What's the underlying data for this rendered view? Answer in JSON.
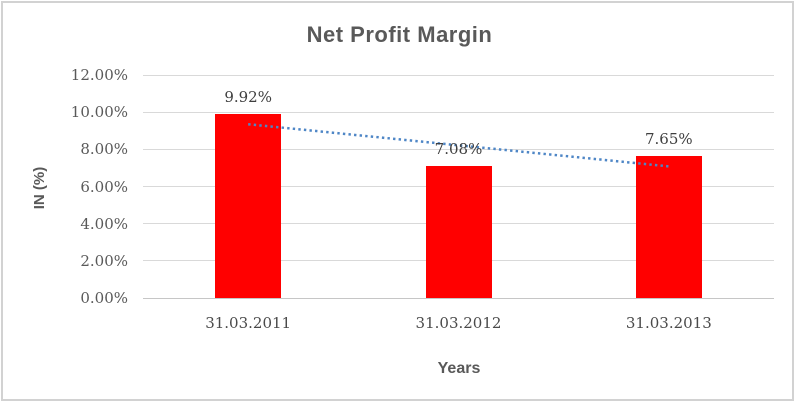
{
  "window": {
    "background": "#ffffff",
    "frame_border_color": "#d2d2d2"
  },
  "chart_data": {
    "type": "bar",
    "title": "Net Profit Margin",
    "xlabel": "Years",
    "ylabel": "IN (%)",
    "categories": [
      "31.03.2011",
      "31.03.2012",
      "31.03.2013"
    ],
    "values": [
      9.92,
      7.08,
      7.65
    ],
    "value_labels": [
      "9.92%",
      "7.08%",
      "7.65%"
    ],
    "ylim": [
      0,
      12
    ],
    "ytick_step": 2,
    "ytick_labels": [
      "0.00%",
      "2.00%",
      "4.00%",
      "6.00%",
      "8.00%",
      "10.00%",
      "12.00%"
    ],
    "grid": true,
    "legend": "none",
    "bar_color": "#ff0000",
    "trendline": {
      "type": "linear",
      "style": "dotted",
      "color": "#4e86c6"
    },
    "gridline_color": "#d9d9d9",
    "axis_line_color": "#c6c6c6",
    "title_color": "#595959",
    "axis_title_color": "#595959",
    "tick_label_color": "#595959",
    "data_label_color": "#3f3f3f"
  }
}
